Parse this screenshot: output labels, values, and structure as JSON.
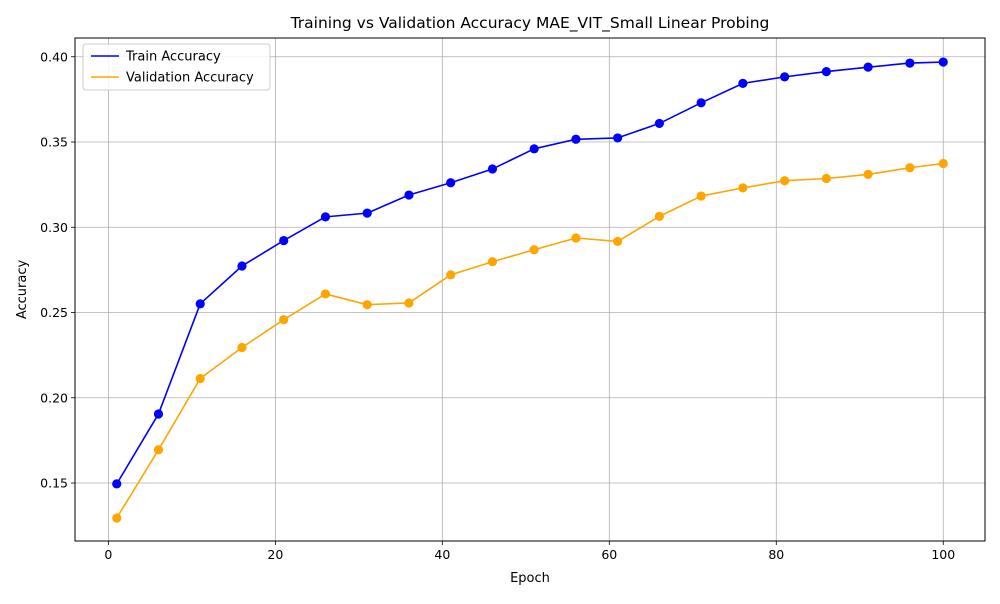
{
  "chart_data": {
    "type": "line",
    "title": "Training vs Validation Accuracy MAE_VIT_Small Linear Probing",
    "xlabel": "Epoch",
    "ylabel": "Accuracy",
    "xlim": [
      -4,
      105
    ],
    "ylim": [
      0.116,
      0.411
    ],
    "xticks": [
      0,
      20,
      40,
      60,
      80,
      100
    ],
    "xtick_labels": [
      "0",
      "20",
      "40",
      "60",
      "80",
      "100"
    ],
    "yticks": [
      0.15,
      0.2,
      0.25,
      0.3,
      0.35,
      0.4
    ],
    "ytick_labels": [
      "0.15",
      "0.20",
      "0.25",
      "0.30",
      "0.35",
      "0.40"
    ],
    "grid": true,
    "legend_position": "top-left",
    "x": [
      1,
      6,
      11,
      16,
      21,
      26,
      31,
      36,
      41,
      46,
      51,
      56,
      61,
      66,
      71,
      76,
      81,
      86,
      91,
      96,
      100
    ],
    "series": [
      {
        "name": "Train Accuracy",
        "color": "#0000ff",
        "marker": "circle",
        "values": [
          0.1495,
          0.1905,
          0.2551,
          0.2773,
          0.2922,
          0.3061,
          0.3083,
          0.3189,
          0.3261,
          0.3342,
          0.346,
          0.3516,
          0.3524,
          0.3609,
          0.373,
          0.3844,
          0.3882,
          0.3913,
          0.3939,
          0.3963,
          0.3969
        ]
      },
      {
        "name": "Validation Accuracy",
        "color": "#ffa500",
        "marker": "circle",
        "values": [
          0.1295,
          0.1695,
          0.2113,
          0.2295,
          0.2458,
          0.2609,
          0.2546,
          0.2556,
          0.2721,
          0.2798,
          0.2868,
          0.2937,
          0.2917,
          0.3064,
          0.3183,
          0.3231,
          0.3273,
          0.3286,
          0.331,
          0.3349,
          0.3374
        ]
      }
    ]
  }
}
